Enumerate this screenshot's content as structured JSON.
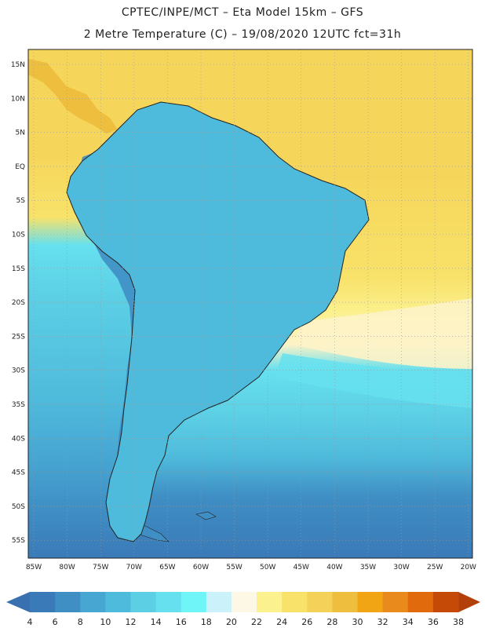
{
  "title_line1": "CPTEC/INPE/MCT –  Eta Model 15km – GFS",
  "title_line2": "2 Metre Temperature (C) – 19/08/2020 12UTC fct=31h",
  "lat_labels": [
    "15N",
    "10N",
    "5N",
    "EQ",
    "5S",
    "10S",
    "15S",
    "20S",
    "25S",
    "30S",
    "35S",
    "40S",
    "45S",
    "50S",
    "55S"
  ],
  "lon_labels": [
    "85W",
    "80W",
    "75W",
    "70W",
    "65W",
    "60W",
    "55W",
    "50W",
    "45W",
    "40W",
    "35W",
    "30W",
    "25W",
    "20W"
  ],
  "colorbar": {
    "ticks": [
      "4",
      "6",
      "8",
      "10",
      "12",
      "14",
      "16",
      "18",
      "20",
      "22",
      "24",
      "26",
      "28",
      "30",
      "32",
      "34",
      "36",
      "38"
    ],
    "colors": [
      "#3a7ab8",
      "#3f8ec4",
      "#47a6d2",
      "#4fbbdc",
      "#5ccfe5",
      "#66e0ee",
      "#6ff4f7",
      "#cbf2fb",
      "#fdf7e6",
      "#fbf18f",
      "#f8e26a",
      "#f4d25a",
      "#eebf3e",
      "#f2a514",
      "#e98a1c",
      "#e06a0c",
      "#c54a08"
    ],
    "left_arrow_color": "#3970b0",
    "right_arrow_color": "#b3400a"
  },
  "colors": {
    "ocean_north": "#f6d65a",
    "ocean_warm": "#f8e26a",
    "ocean_pale": "#fdf3c8",
    "ocean_cool": "#5ccfe5",
    "ocean_cold": "#3f8ec4",
    "land_hot": "#c54a08",
    "land_warm": "#e98a1c",
    "land_south": "#4fbbdc"
  }
}
